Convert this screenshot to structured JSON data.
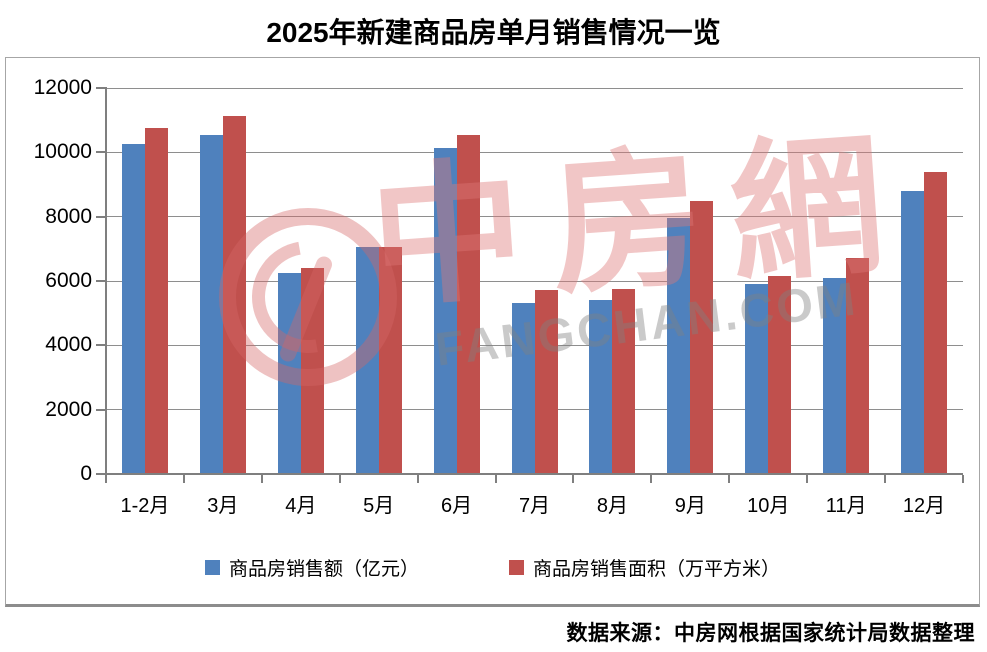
{
  "title": "2025年新建商品房单月销售情况一览",
  "source": "数据来源：中房网根据国家统计局数据整理",
  "watermark": {
    "logo_icon": "zhongfangwang-circle-logo",
    "cn_text": "中房網",
    "domain_text": "FANGCHAN.COM"
  },
  "chart_data": {
    "type": "bar",
    "title": "2025年新建商品房单月销售情况一览",
    "categories": [
      "1-2月",
      "3月",
      "4月",
      "5月",
      "6月",
      "7月",
      "8月",
      "9月",
      "10月",
      "11月",
      "12月"
    ],
    "series": [
      {
        "name": "商品房销售额（亿元）",
        "color": "#4F81BD",
        "values": [
          10259,
          10539,
          6237,
          7056,
          10150,
          5330,
          5400,
          7950,
          5900,
          6080,
          8800
        ]
      },
      {
        "name": "商品房销售面积（万平方米）",
        "color": "#C0504D",
        "values": [
          10746,
          11126,
          6390,
          7053,
          10536,
          5709,
          5744,
          8500,
          6160,
          6700,
          9400
        ]
      }
    ],
    "xlabel": "",
    "ylabel": "",
    "ylim": [
      0,
      12000
    ],
    "yticks": [
      0,
      2000,
      4000,
      6000,
      8000,
      10000,
      12000
    ],
    "grid": true,
    "legend_position": "bottom",
    "gridline_color": "#8e8e8e",
    "axis_color": "#7f7f7f"
  }
}
